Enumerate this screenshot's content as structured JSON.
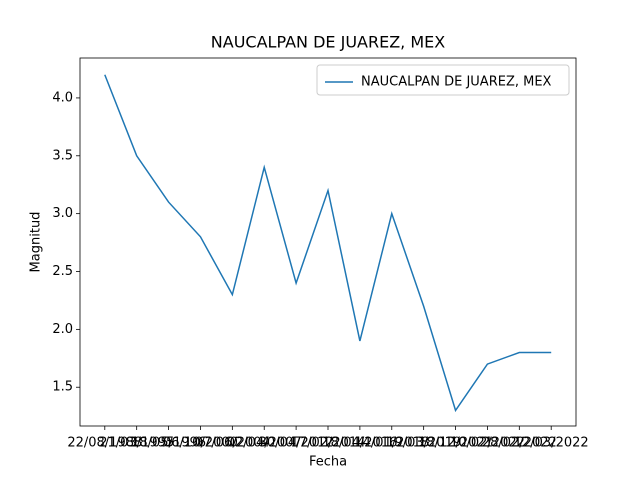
{
  "chart_data": {
    "type": "line",
    "title": "NAUCALPAN DE JUAREZ, MEX",
    "x_label": "Fecha",
    "y_label": "Magnitud",
    "categories": [
      "22/08/1988",
      "21/03/1995",
      "18/05/1996",
      "06/10/2000",
      "07/06/2004",
      "02/04/2007",
      "30/04/2012",
      "17/02/2014",
      "18/04/2016",
      "14/01/2018",
      "19/03/2019",
      "18/12/2021",
      "10/02/2022",
      "28/02/2022",
      "12/03/2022"
    ],
    "series": [
      {
        "name": "NAUCALPAN DE JUAREZ, MEX",
        "color": "#1f77b4",
        "values": [
          4.2,
          3.5,
          3.1,
          2.8,
          2.3,
          3.4,
          2.4,
          3.2,
          1.9,
          3.0,
          2.2,
          1.3,
          1.7,
          1.8,
          1.8
        ]
      }
    ],
    "ylim": [
      1.165,
      4.345
    ],
    "yticks": [
      {
        "value": 1.5,
        "label": "1.5"
      },
      {
        "value": 2.0,
        "label": "2.0"
      },
      {
        "value": 2.5,
        "label": "2.5"
      },
      {
        "value": 3.0,
        "label": "3.0"
      },
      {
        "value": 3.5,
        "label": "3.5"
      },
      {
        "value": 4.0,
        "label": "4.0"
      }
    ],
    "grid": false,
    "legend": "upper right"
  }
}
